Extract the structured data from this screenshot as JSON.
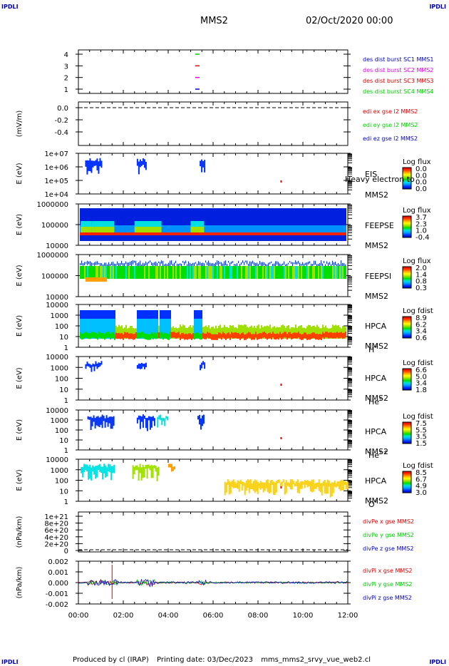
{
  "corners": {
    "tl": "IPDLI",
    "tr": "IPDLI",
    "bl": "IPDLI",
    "br": "IPDLI"
  },
  "header": {
    "spacecraft": "MMS2",
    "date": "02/Oct/2020 00:00"
  },
  "footer": {
    "producer": "Produced by cl (IRAP)",
    "printing": "Printing date: 03/Dec/2023",
    "file": "mms_mms2_srvy_vue_web2.cl"
  },
  "x_ticks": [
    "00:00",
    "02:00",
    "04:00",
    "06:00",
    "08:00",
    "10:00",
    "12:00"
  ],
  "colors": {
    "red": "#dd0000",
    "magenta": "#dd00dd",
    "green": "#00cc00",
    "blue": "#0000cc"
  },
  "chart_data": [
    {
      "type": "scatter",
      "id": "burst",
      "yticks": [
        "4",
        "3",
        "2",
        "1"
      ],
      "legend": [
        {
          "text": "des dist burst SC1 MMS1",
          "color": "#0000cc"
        },
        {
          "text": "des dist burst SC2 MMS2",
          "color": "#dd00dd"
        },
        {
          "text": "des dist burst SC3 MMS3",
          "color": "#dd0000"
        },
        {
          "text": "des dist burst SC4 MMS4",
          "color": "#00cc00"
        }
      ],
      "series": [
        {
          "name": "SC4",
          "y": 4,
          "t": 5.3
        },
        {
          "name": "SC3",
          "y": 3,
          "t": 5.3
        },
        {
          "name": "SC2",
          "y": 2,
          "t": 5.3
        },
        {
          "name": "SC1",
          "y": 1,
          "t": 5.3
        }
      ]
    },
    {
      "type": "line",
      "id": "edi",
      "ylabel": "(mV/m)",
      "yticks": [
        "0.0",
        "-0.2",
        "-0.4"
      ],
      "legend": [
        {
          "text": "edi ex gse l2 MMS2",
          "color": "#dd0000"
        },
        {
          "text": "edi ey gse l2 MMS2",
          "color": "#00cc00"
        },
        {
          "text": "edi ez gse l2 MMS2",
          "color": "#0000cc"
        }
      ]
    },
    {
      "type": "heatmap",
      "id": "eis",
      "ylabel": "E (eV)",
      "yticks": [
        "1e+07",
        "1e+06",
        "1e+05",
        "1e+04"
      ],
      "inst": [
        "EIS",
        "MMS2"
      ],
      "overlay": "Heavy electron to",
      "cb_title": "Log flux",
      "cb_ticks": [
        "0.0",
        "0.0",
        "0.0",
        "0.0"
      ]
    },
    {
      "type": "heatmap",
      "id": "feepse",
      "ylabel": "E (eV)",
      "yticks": [
        "1000000",
        "100000",
        "10000"
      ],
      "inst": [
        "FEEPSE",
        "MMS2"
      ],
      "cb_title": "Log flux",
      "cb_ticks": [
        "3.7",
        "2.3",
        "1.0",
        "-0.4"
      ]
    },
    {
      "type": "heatmap",
      "id": "feepsi",
      "ylabel": "E (eV)",
      "yticks": [
        "1000000",
        "100000",
        "10000"
      ],
      "inst": [
        "FEEPSI",
        "MMS2"
      ],
      "cb_title": "Log flux",
      "cb_ticks": [
        "2.0",
        "1.4",
        "0.8",
        "0.3"
      ]
    },
    {
      "type": "heatmap",
      "id": "hpca_h",
      "ylabel": "E (eV)",
      "yticks": [
        "10000",
        "1000",
        "100",
        "10",
        "1"
      ],
      "inst": [
        "HPCA",
        "MMS2",
        "H",
        "+"
      ],
      "cb_title": "Log fdist",
      "cb_ticks": [
        "8.9",
        "6.2",
        "3.4",
        "0.6"
      ]
    },
    {
      "type": "heatmap",
      "id": "hpca_he1",
      "ylabel": "E (eV)",
      "yticks": [
        "10000",
        "1000",
        "100",
        "10",
        "1"
      ],
      "inst": [
        "HPCA",
        "MMS2",
        "He",
        "+"
      ],
      "cb_title": "Log fdist",
      "cb_ticks": [
        "6.6",
        "5.0",
        "3.4",
        "1.8"
      ]
    },
    {
      "type": "heatmap",
      "id": "hpca_he2",
      "ylabel": "E (eV)",
      "yticks": [
        "10000",
        "1000",
        "100",
        "10",
        "1"
      ],
      "inst": [
        "HPCA",
        "MMS2",
        "He",
        "++"
      ],
      "cb_title": "Log fdist",
      "cb_ticks": [
        "7.5",
        "5.5",
        "3.5",
        "1.5"
      ]
    },
    {
      "type": "heatmap",
      "id": "hpca_o",
      "ylabel": "E (eV)",
      "yticks": [
        "10000",
        "1000",
        "100",
        "10",
        "1"
      ],
      "inst": [
        "HPCA",
        "MMS2",
        "O",
        "+"
      ],
      "cb_title": "Log fdist",
      "cb_ticks": [
        "8.5",
        "6.7",
        "4.9",
        "3.0"
      ]
    },
    {
      "type": "line",
      "id": "divpe",
      "ylabel": "(nPa/km)",
      "yticks": [
        "1e+21",
        "8e+20",
        "6e+20",
        "4e+20",
        "2e+20",
        "0"
      ],
      "legend": [
        {
          "text": "divPe x gse MMS2",
          "color": "#dd0000"
        },
        {
          "text": "divPe y gse MMS2",
          "color": "#00cc00"
        },
        {
          "text": "divPe z gse MMS2",
          "color": "#0000cc"
        }
      ]
    },
    {
      "type": "line",
      "id": "divpi",
      "ylabel": "(nPa/km)",
      "yticks": [
        "0.002",
        "0.001",
        "0.000",
        "-0.001",
        "-0.002"
      ],
      "legend": [
        {
          "text": "divPi x gse MMS2",
          "color": "#dd0000"
        },
        {
          "text": "divPi y gse MMS2",
          "color": "#00cc00"
        },
        {
          "text": "divPi z gse MMS2",
          "color": "#0000cc"
        }
      ]
    }
  ]
}
